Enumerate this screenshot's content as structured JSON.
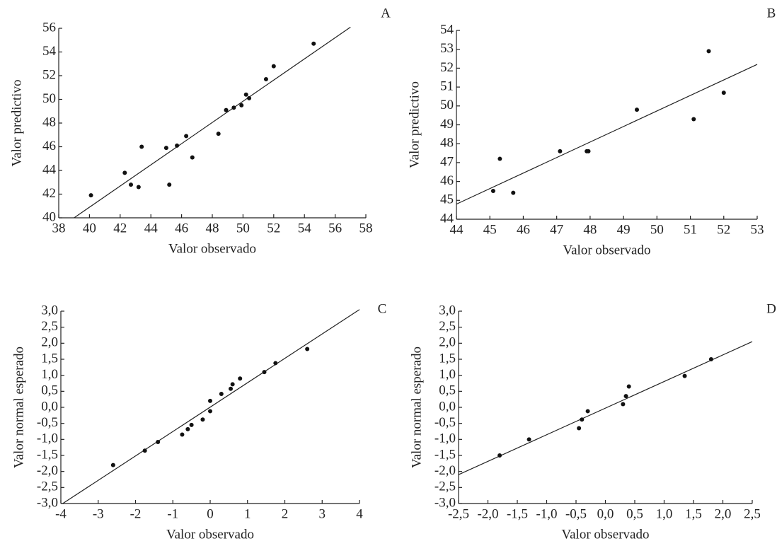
{
  "chart_data": [
    {
      "type": "scatter",
      "annotation": "A",
      "x_label": "Valor observado",
      "y_label": "Valor predictivo",
      "x": [
        40.1,
        42.3,
        42.7,
        43.2,
        43.4,
        45.0,
        45.2,
        45.7,
        46.3,
        46.7,
        48.4,
        48.9,
        49.4,
        49.9,
        50.2,
        50.4,
        51.5,
        52.0,
        54.6
      ],
      "y": [
        41.9,
        43.8,
        42.8,
        42.6,
        46.0,
        45.9,
        42.8,
        46.1,
        46.9,
        45.1,
        47.1,
        49.1,
        49.3,
        49.5,
        50.4,
        50.1,
        51.7,
        52.8,
        54.7
      ],
      "fit_line": {
        "x": [
          39.0,
          57.0
        ],
        "y": [
          40.0,
          56.1
        ]
      },
      "xlim": [
        38,
        58
      ],
      "ylim": [
        40,
        56
      ],
      "xticks": [
        38,
        40,
        42,
        44,
        46,
        48,
        50,
        52,
        54,
        56,
        58
      ],
      "yticks": [
        40,
        42,
        44,
        46,
        48,
        50,
        52,
        54,
        56
      ]
    },
    {
      "type": "scatter",
      "annotation": "B",
      "x_label": "Valor observado",
      "y_label": "Valor predictivo",
      "x": [
        45.1,
        45.3,
        45.7,
        47.1,
        47.9,
        47.95,
        49.4,
        51.1,
        51.55,
        52.0
      ],
      "y": [
        45.5,
        47.2,
        45.4,
        47.6,
        47.6,
        47.6,
        49.8,
        49.3,
        52.9,
        50.7
      ],
      "fit_line": {
        "x": [
          44.0,
          53.0
        ],
        "y": [
          44.8,
          52.2
        ]
      },
      "xlim": [
        44,
        53
      ],
      "ylim": [
        44,
        54
      ],
      "xticks": [
        44,
        45,
        46,
        47,
        48,
        49,
        50,
        51,
        52,
        53
      ],
      "yticks": [
        44,
        45,
        46,
        47,
        48,
        49,
        50,
        51,
        52,
        53,
        54
      ]
    },
    {
      "type": "scatter",
      "annotation": "C",
      "x_label": "Valor observado",
      "y_label": "Valor normal esperado",
      "x": [
        -2.6,
        -1.75,
        -1.4,
        -0.75,
        -0.6,
        -0.5,
        -0.2,
        0.0,
        0.0,
        0.3,
        0.55,
        0.6,
        0.8,
        1.45,
        1.75,
        2.6
      ],
      "y": [
        -1.8,
        -1.35,
        -1.08,
        -0.85,
        -0.68,
        -0.55,
        -0.38,
        -0.12,
        0.2,
        0.42,
        0.58,
        0.72,
        0.9,
        1.1,
        1.38,
        1.82
      ],
      "fit_line": {
        "x": [
          -3.95,
          4.0
        ],
        "y": [
          -3.0,
          3.05
        ]
      },
      "xlim": [
        -4,
        4
      ],
      "ylim": [
        -3,
        3
      ],
      "xticks": [
        -4,
        -3,
        -2,
        -1,
        0,
        1,
        2,
        3,
        4
      ],
      "yticks": [
        {
          "value": -3,
          "label": "-3,0"
        },
        {
          "value": -2.5,
          "label": "-2,5"
        },
        {
          "value": -2,
          "label": "-2,0"
        },
        {
          "value": -1.5,
          "label": "-1,5"
        },
        {
          "value": -1,
          "label": "-1,0"
        },
        {
          "value": -0.5,
          "label": "-0,5"
        },
        {
          "value": 0,
          "label": "0,0"
        },
        {
          "value": 0.5,
          "label": "0,5"
        },
        {
          "value": 1,
          "label": "1,0"
        },
        {
          "value": 1.5,
          "label": "1,5"
        },
        {
          "value": 2,
          "label": "2,0"
        },
        {
          "value": 2.5,
          "label": "2,5"
        },
        {
          "value": 3,
          "label": "3,0"
        }
      ]
    },
    {
      "type": "scatter",
      "annotation": "D",
      "x_label": "Valor observado",
      "y_label": "Valor normal esperado",
      "x": [
        -1.8,
        -1.3,
        -0.45,
        -0.4,
        -0.3,
        0.3,
        0.35,
        0.4,
        1.35,
        1.8
      ],
      "y": [
        -1.5,
        -1.0,
        -0.65,
        -0.38,
        -0.12,
        0.1,
        0.35,
        0.65,
        0.98,
        1.5
      ],
      "fit_line": {
        "x": [
          -2.5,
          2.5
        ],
        "y": [
          -2.1,
          2.05
        ]
      },
      "xlim": [
        -2.5,
        2.5
      ],
      "ylim": [
        -3,
        3
      ],
      "xticks": [
        {
          "value": -2.5,
          "label": "-2,5"
        },
        {
          "value": -2,
          "label": "-2,0"
        },
        {
          "value": -1.5,
          "label": "-1,5"
        },
        {
          "value": -1,
          "label": "-1,0"
        },
        {
          "value": -0.5,
          "label": "-0,5"
        },
        {
          "value": 0,
          "label": "0,0"
        },
        {
          "value": 0.5,
          "label": "0,5"
        },
        {
          "value": 1,
          "label": "1,0"
        },
        {
          "value": 1.5,
          "label": "1,5"
        },
        {
          "value": 2,
          "label": "2,0"
        },
        {
          "value": 2.5,
          "label": "2,5"
        }
      ],
      "yticks": [
        {
          "value": -3,
          "label": "-3,0"
        },
        {
          "value": -2.5,
          "label": "-2,5"
        },
        {
          "value": -2,
          "label": "-2,0"
        },
        {
          "value": -1.5,
          "label": "-1,5"
        },
        {
          "value": -1,
          "label": "-1,0"
        },
        {
          "value": -0.5,
          "label": "-0,5"
        },
        {
          "value": 0,
          "label": "0,0"
        },
        {
          "value": 0.5,
          "label": "0,5"
        },
        {
          "value": 1,
          "label": "1,0"
        },
        {
          "value": 1.5,
          "label": "1,5"
        },
        {
          "value": 2,
          "label": "2,0"
        },
        {
          "value": 2.5,
          "label": "2,5"
        },
        {
          "value": 3,
          "label": "3,0"
        }
      ]
    }
  ]
}
